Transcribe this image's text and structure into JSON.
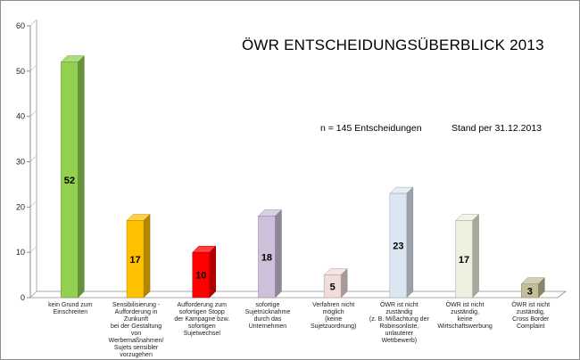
{
  "chart_data": {
    "type": "bar",
    "title": "ÖWR ENTSCHEIDUNGSÜBERBLICK 2013",
    "annotations": [
      "n = 145 Entscheidungen",
      "Stand per 31.12.2013"
    ],
    "categories": [
      "kein Grund zum\nEinschreiten",
      "Sensibilisierung -\nAufforderung in\nZunkunft\nbei der Gestaltung\nvon\nWerbemaßnahmen/\nSujets sensibler\nvorzugehen",
      "Aufforderung zum\nsofortigen Stopp\nder Kampagne bzw.\nsofortigen\nSujetwechsel",
      "sofortige\nSujetrücknahme\ndurch das\nUnternehmen",
      "Verfahren nicht\nmöglich\n(keine\nSujetzuordnung)",
      "ÖWR ist nicht\nzuständig\n(z. B. Mißachtung der\nRobinsonliste,\nunlauterer\nWettbewerb)",
      "ÖWR ist nicht\nzuständig,\nkeine\nWirtschaftswerbung",
      "ÖWR ist nicht\nzuständig,\nCross Border\nComplaint"
    ],
    "values": [
      52,
      17,
      10,
      18,
      5,
      23,
      17,
      3
    ],
    "value_labels": [
      "52",
      "17",
      "10",
      "18",
      "5",
      "23",
      "17",
      "3"
    ],
    "colors": [
      "#92d050",
      "#ffc000",
      "#ff0000",
      "#ccc0da",
      "#f2dcdb",
      "#dce6f2",
      "#ebf1de",
      "#c4bd97"
    ],
    "ylim": [
      0,
      60
    ],
    "yticks": [
      "0",
      "10",
      "20",
      "30",
      "40",
      "50",
      "60"
    ],
    "grid": false,
    "xlabel": "",
    "ylabel": ""
  }
}
